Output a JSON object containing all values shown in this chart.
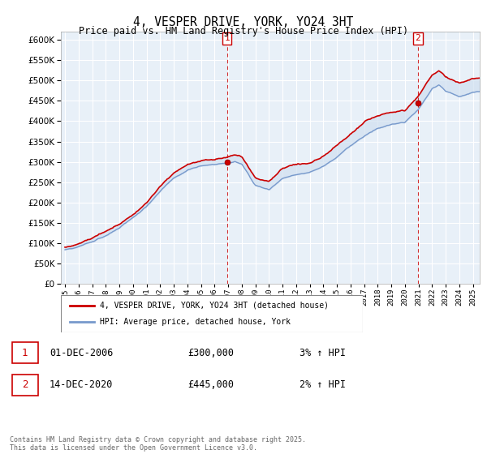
{
  "title": "4, VESPER DRIVE, YORK, YO24 3HT",
  "subtitle": "Price paid vs. HM Land Registry's House Price Index (HPI)",
  "ytick_values": [
    0,
    50000,
    100000,
    150000,
    200000,
    250000,
    300000,
    350000,
    400000,
    450000,
    500000,
    550000,
    600000
  ],
  "ylim": [
    0,
    620000
  ],
  "xlim_start": 1994.7,
  "xlim_end": 2025.5,
  "house_color": "#cc0000",
  "hpi_color": "#7799cc",
  "fill_color": "#d0e0f0",
  "purchase1_x": 2006.92,
  "purchase1_y": 300000,
  "purchase2_x": 2020.96,
  "purchase2_y": 445000,
  "legend_line1": "4, VESPER DRIVE, YORK, YO24 3HT (detached house)",
  "legend_line2": "HPI: Average price, detached house, York",
  "annotation1_date": "01-DEC-2006",
  "annotation1_price": "£300,000",
  "annotation1_hpi": "3% ↑ HPI",
  "annotation2_date": "14-DEC-2020",
  "annotation2_price": "£445,000",
  "annotation2_hpi": "2% ↑ HPI",
  "footer": "Contains HM Land Registry data © Crown copyright and database right 2025.\nThis data is licensed under the Open Government Licence v3.0.",
  "bg_color": "#ffffff",
  "plot_bg_color": "#e8f0f8",
  "grid_color": "#ffffff"
}
